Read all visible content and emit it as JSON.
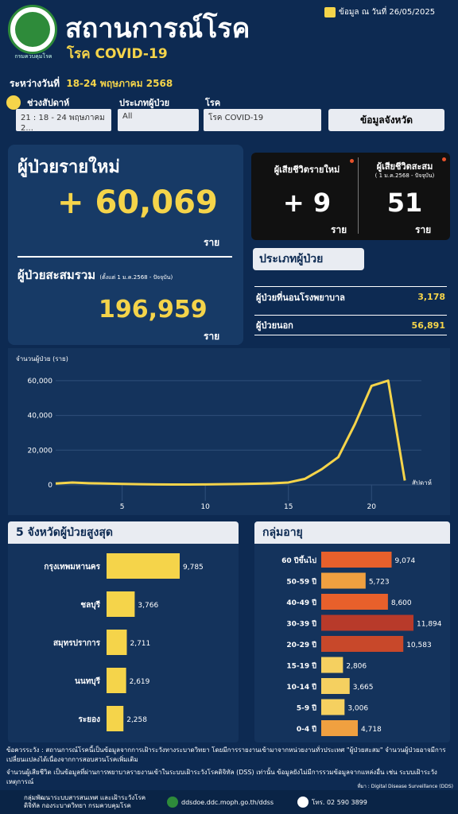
{
  "header": {
    "title": "สถานการณ์โรค",
    "subtitle": "โรค COVID-19",
    "asof": "ข้อมูล ณ วันที่ 26/05/2025",
    "logo_caption": "กรมควบคุมโรค"
  },
  "range": {
    "label": "ระหว่างวันที่",
    "value": "18-24 พฤษภาคม 2568"
  },
  "filters": {
    "week_label": "ช่วงสัปดาห์",
    "week_value": "21 : 18 - 24 พฤษภาคม 2...",
    "ptype_label": "ประเภทผู้ป่วย",
    "ptype_value": "All",
    "disease_label": "โรค",
    "disease_value": "โรค COVID-19",
    "province_button": "ข้อมูลจังหวัด"
  },
  "new_cases": {
    "label": "ผู้ป่วยรายใหม่",
    "value": "+ 60,069",
    "unit": "ราย"
  },
  "cumulative": {
    "label": "ผู้ป่วยสะสมรวม",
    "note": "(ตั้งแต่ 1 ม.ค.2568 - ปัจจุบัน)",
    "value": "196,959",
    "unit": "ราย"
  },
  "deaths": {
    "new_label": "ผู้เสียชีวิตรายใหม่",
    "new_value": "+ 9",
    "new_unit": "ราย",
    "cum_label": "ผู้เสียชีวิตสะสม",
    "cum_note": "( 1 ม.ค.2568 - ปัจจุบัน)",
    "cum_value": "51",
    "cum_unit": "ราย"
  },
  "patient_type": {
    "header": "ประเภทผู้ป่วย",
    "rows": [
      {
        "label": "ผู้ป่วยที่นอนโรงพยาบาล",
        "value": "3,178"
      },
      {
        "label": "ผู้ป่วยนอก",
        "value": "56,891"
      }
    ]
  },
  "colors": {
    "accent": "#f5d44a",
    "bg": "#0d2a52",
    "age_orange": "#e8602b",
    "age_red": "#b83a2a",
    "age_light": "#f0c25a"
  },
  "chart_data": [
    {
      "type": "line",
      "ylabel": "จำนวนผู้ป่วย (ราย)",
      "xlabel": "สัปดาห์",
      "x": [
        1,
        2,
        3,
        4,
        5,
        6,
        7,
        8,
        9,
        10,
        11,
        12,
        13,
        14,
        15,
        16,
        17,
        18,
        19,
        20,
        21,
        22
      ],
      "values": [
        800,
        1400,
        1000,
        800,
        600,
        400,
        300,
        250,
        250,
        300,
        400,
        500,
        700,
        900,
        1400,
        3500,
        9000,
        16000,
        35000,
        57000,
        60069,
        2500
      ],
      "yticks": [
        "0",
        "20,000",
        "40,000",
        "60,000"
      ],
      "xticks": [
        "5",
        "10",
        "15",
        "20"
      ],
      "ylim": [
        0,
        65000
      ],
      "xlim": [
        1,
        23
      ]
    },
    {
      "type": "bar",
      "title": "5 จังหวัดผู้ป่วยสูงสุด",
      "categories": [
        "กรุงเทพมหานคร",
        "ชลบุรี",
        "สมุทรปราการ",
        "นนทบุรี",
        "ระยอง"
      ],
      "values": [
        9785,
        3766,
        2711,
        2619,
        2258
      ],
      "labels": [
        "9,785",
        "3,766",
        "2,711",
        "2,619",
        "2,258"
      ]
    },
    {
      "type": "bar",
      "title": "กลุ่มอายุ",
      "categories": [
        "60 ปีขึ้นไป",
        "50-59 ปี",
        "40-49 ปี",
        "30-39 ปี",
        "20-29 ปี",
        "15-19 ปี",
        "10-14 ปี",
        "5-9 ปี",
        "0-4 ปี"
      ],
      "values": [
        9074,
        5723,
        8600,
        11894,
        10583,
        2806,
        3665,
        3006,
        4718
      ],
      "labels": [
        "9,074",
        "5,723",
        "8,600",
        "11,894",
        "10,583",
        "2,806",
        "3,665",
        "3,006",
        "4,718"
      ],
      "colors": [
        "#e8602b",
        "#f0a040",
        "#e8602b",
        "#b83a2a",
        "#c8482a",
        "#f5d060",
        "#f5d060",
        "#f5d060",
        "#f0a040"
      ]
    }
  ],
  "footnotes": {
    "note1": "ข้อควรระวัง : สถานการณ์โรคนี้เป็นข้อมูลจากการเฝ้าระวังทางระบาดวิทยา โดยมีการรายงานเข้ามาจากหน่วยงานทั่วประเทศ \"ผู้ป่วยสะสม\" จำนวนผู้ป่วยอาจมีการเปลี่ยนแปลงได้เนื่องจากการสอบสวนโรคเพิ่มเติม",
    "note2": "จำนวนผู้เสียชีวิต เป็นข้อมูลที่ผ่านการพยาบาลรายงานเข้าในระบบเฝ้าระวังโรคดิจิทัล (DSS) เท่านั้น ข้อมูลยังไม่มีการรวมข้อมูลจากแหล่งอื่น เช่น ระบบเฝ้าระวังเหตุการณ์",
    "source": "ที่มา : Digital Disease Surveillance (DDS)",
    "org": "กลุ่มพัฒนาระบบสารสนเทศ และเฝ้าระวังโรคดิจิทัล กองระบาดวิทยา กรมควบคุมโรค",
    "web": "ddsdoe.ddc.moph.go.th/ddss",
    "phone": "โทร. 02 590 3899"
  }
}
